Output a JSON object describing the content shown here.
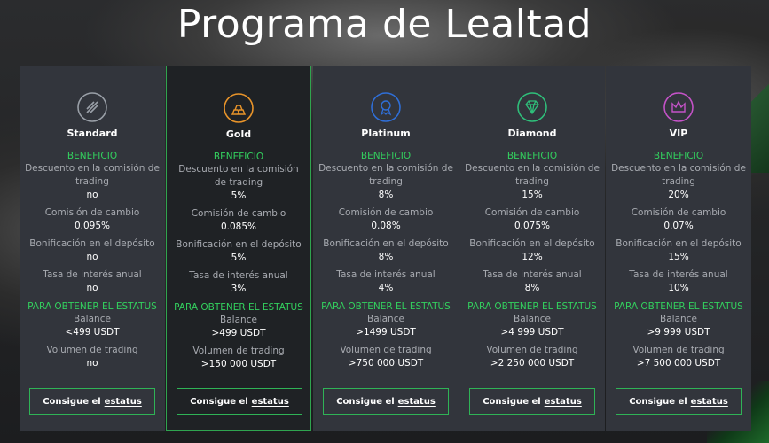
{
  "page": {
    "title": "Programa de Lealtad"
  },
  "labels": {
    "benefit": "BENEFICIO",
    "discount": "Descuento en la comisión de trading",
    "exchange": "Comisión de cambio",
    "deposit_bonus": "Bonificación en el depósito",
    "interest": "Tasa de interés anual",
    "requirement": "PARA OBTENER EL ESTATUS",
    "balance": "Balance",
    "volume": "Volumen de trading",
    "button_part1": "Consigue el",
    "button_part2": "estatus"
  },
  "tiers": [
    {
      "name": "Standard",
      "icon": "standard-icon",
      "color": "#9aa0a8",
      "discount": "no",
      "exchange": "0.095%",
      "deposit_bonus": "no",
      "interest": "no",
      "balance": "<499 USDT",
      "volume": "no"
    },
    {
      "name": "Gold",
      "icon": "gold-bars-icon",
      "color": "#e8942a",
      "discount": "5%",
      "exchange": "0.085%",
      "deposit_bonus": "5%",
      "interest": "3%",
      "balance": ">499 USDT",
      "volume": ">150 000 USDT"
    },
    {
      "name": "Platinum",
      "icon": "medal-icon",
      "color": "#2f6fd8",
      "discount": "8%",
      "exchange": "0.08%",
      "deposit_bonus": "8%",
      "interest": "4%",
      "balance": ">1499 USDT",
      "volume": ">750 000 USDT"
    },
    {
      "name": "Diamond",
      "icon": "diamond-icon",
      "color": "#2fbf7a",
      "discount": "15%",
      "exchange": "0.075%",
      "deposit_bonus": "12%",
      "interest": "8%",
      "balance": ">4 999 USDT",
      "volume": ">2 250 000 USDT"
    },
    {
      "name": "VIP",
      "icon": "crown-icon",
      "color": "#c553c8",
      "discount": "20%",
      "exchange": "0.07%",
      "deposit_bonus": "15%",
      "interest": "10%",
      "balance": ">9 999 USDT",
      "volume": ">7 500 000 USDT"
    }
  ]
}
